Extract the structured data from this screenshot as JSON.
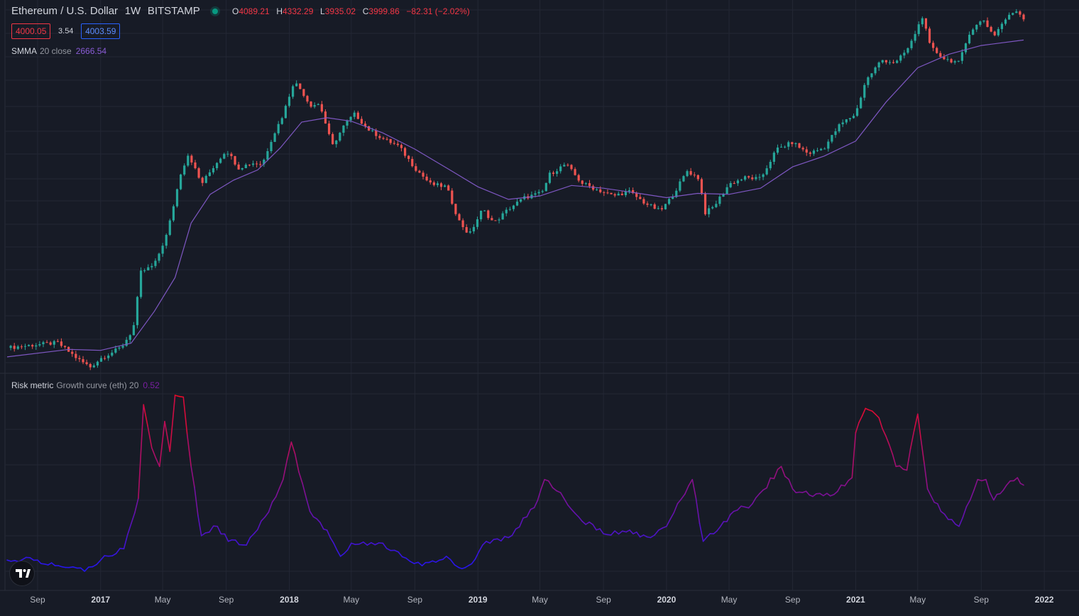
{
  "header": {
    "symbol": "Ethereum / U.S. Dollar",
    "interval": "1W",
    "exchange": "BITSTAMP",
    "ohlc": [
      {
        "key": "O",
        "value": "4089.21"
      },
      {
        "key": "H",
        "value": "4332.29"
      },
      {
        "key": "L",
        "value": "3935.02"
      },
      {
        "key": "C",
        "value": "3999.86"
      }
    ],
    "change": "−82.31 (−2.02%)"
  },
  "trade": {
    "sell_price": "4000.05",
    "spread": "3.54",
    "buy_price": "4003.59"
  },
  "indicators": {
    "smma": {
      "name": "SMMA",
      "params": "20 close",
      "value": "2666.54"
    },
    "risk": {
      "name": "Risk metric",
      "params": "Growth curve (eth) 20",
      "value": "0.52"
    }
  },
  "colors": {
    "background": "#171b26",
    "grid": "#232734",
    "up_candle": "#26a69a",
    "down_candle": "#ef5350",
    "smma_line": "#7e57c2",
    "risk_low": "#2216f0",
    "risk_high": "#ee0b22"
  },
  "chart_data": [
    {
      "type": "candlestick",
      "title": "Ethereum / U.S. Dollar · 1W · BITSTAMP",
      "y_scale": "log",
      "x_tick_labels": [
        "Sep",
        "2017",
        "May",
        "Sep",
        "2018",
        "May",
        "Sep",
        "2019",
        "May",
        "Sep",
        "2020",
        "May",
        "Sep",
        "2021",
        "May",
        "Sep",
        "2022"
      ],
      "x_tick_dates": [
        "2016-09-01",
        "2017-01-01",
        "2017-05-01",
        "2017-09-01",
        "2018-01-01",
        "2018-05-01",
        "2018-09-01",
        "2019-01-01",
        "2019-05-01",
        "2019-09-01",
        "2020-01-01",
        "2020-05-01",
        "2020-09-01",
        "2021-01-01",
        "2021-05-01",
        "2021-09-01",
        "2022-01-01"
      ],
      "start_date": "2016-07-04",
      "close_path": [
        [
          "2016-07-04",
          11.5
        ],
        [
          "2016-09-01",
          12.2
        ],
        [
          "2016-10-10",
          12.6
        ],
        [
          "2016-11-20",
          9.3
        ],
        [
          "2016-12-12",
          8.2
        ],
        [
          "2017-01-02",
          9.6
        ],
        [
          "2017-02-10",
          11.6
        ],
        [
          "2017-03-05",
          16
        ],
        [
          "2017-03-20",
          44
        ],
        [
          "2017-04-15",
          50
        ],
        [
          "2017-05-10",
          88
        ],
        [
          "2017-06-05",
          255
        ],
        [
          "2017-06-20",
          360
        ],
        [
          "2017-07-15",
          210
        ],
        [
          "2017-08-10",
          295
        ],
        [
          "2017-09-01",
          385
        ],
        [
          "2017-09-25",
          280
        ],
        [
          "2017-10-20",
          305
        ],
        [
          "2017-11-10",
          300
        ],
        [
          "2017-11-28",
          470
        ],
        [
          "2017-12-20",
          720
        ],
        [
          "2018-01-10",
          1300
        ],
        [
          "2018-01-25",
          1100
        ],
        [
          "2018-02-10",
          850
        ],
        [
          "2018-03-01",
          870
        ],
        [
          "2018-03-25",
          410
        ],
        [
          "2018-04-20",
          620
        ],
        [
          "2018-05-08",
          730
        ],
        [
          "2018-06-01",
          560
        ],
        [
          "2018-07-01",
          470
        ],
        [
          "2018-08-01",
          410
        ],
        [
          "2018-09-01",
          280
        ],
        [
          "2018-10-01",
          210
        ],
        [
          "2018-11-01",
          200
        ],
        [
          "2018-11-25",
          110
        ],
        [
          "2018-12-15",
          85
        ],
        [
          "2019-01-10",
          135
        ],
        [
          "2019-02-01",
          105
        ],
        [
          "2019-03-01",
          135
        ],
        [
          "2019-04-01",
          165
        ],
        [
          "2019-05-05",
          180
        ],
        [
          "2019-05-20",
          250
        ],
        [
          "2019-06-20",
          300
        ],
        [
          "2019-07-20",
          215
        ],
        [
          "2019-08-20",
          190
        ],
        [
          "2019-09-20",
          170
        ],
        [
          "2019-10-20",
          185
        ],
        [
          "2019-11-20",
          150
        ],
        [
          "2019-12-20",
          130
        ],
        [
          "2020-01-10",
          165
        ],
        [
          "2020-02-10",
          265
        ],
        [
          "2020-03-05",
          230
        ],
        [
          "2020-03-14",
          125
        ],
        [
          "2020-04-01",
          140
        ],
        [
          "2020-05-01",
          210
        ],
        [
          "2020-06-01",
          235
        ],
        [
          "2020-07-01",
          230
        ],
        [
          "2020-08-01",
          390
        ],
        [
          "2020-09-01",
          440
        ],
        [
          "2020-10-01",
          360
        ],
        [
          "2020-11-01",
          400
        ],
        [
          "2020-12-01",
          600
        ],
        [
          "2021-01-01",
          730
        ],
        [
          "2021-01-20",
          1300
        ],
        [
          "2021-02-20",
          1900
        ],
        [
          "2021-03-20",
          1800
        ],
        [
          "2021-04-15",
          2400
        ],
        [
          "2021-05-10",
          4100
        ],
        [
          "2021-05-25",
          2400
        ],
        [
          "2021-06-20",
          1950
        ],
        [
          "2021-07-20",
          1800
        ],
        [
          "2021-08-10",
          3150
        ],
        [
          "2021-09-05",
          3900
        ],
        [
          "2021-09-25",
          2900
        ],
        [
          "2021-10-15",
          3800
        ],
        [
          "2021-11-07",
          4600
        ],
        [
          "2021-11-22",
          4000
        ]
      ],
      "smma_path": [
        [
          "2016-07-04",
          9.8
        ],
        [
          "2016-11-01",
          11.2
        ],
        [
          "2017-01-01",
          11
        ],
        [
          "2017-03-01",
          12.5
        ],
        [
          "2017-04-15",
          22
        ],
        [
          "2017-05-25",
          40
        ],
        [
          "2017-06-25",
          105
        ],
        [
          "2017-08-01",
          175
        ],
        [
          "2017-09-15",
          225
        ],
        [
          "2017-11-01",
          270
        ],
        [
          "2017-12-15",
          400
        ],
        [
          "2018-01-25",
          630
        ],
        [
          "2018-03-15",
          680
        ],
        [
          "2018-05-01",
          640
        ],
        [
          "2018-07-01",
          520
        ],
        [
          "2018-09-01",
          390
        ],
        [
          "2018-11-01",
          280
        ],
        [
          "2019-01-01",
          200
        ],
        [
          "2019-03-01",
          160
        ],
        [
          "2019-05-01",
          170
        ],
        [
          "2019-07-01",
          205
        ],
        [
          "2019-09-01",
          195
        ],
        [
          "2019-11-01",
          180
        ],
        [
          "2020-01-01",
          165
        ],
        [
          "2020-03-01",
          178
        ],
        [
          "2020-05-01",
          175
        ],
        [
          "2020-07-01",
          195
        ],
        [
          "2020-09-01",
          285
        ],
        [
          "2020-11-01",
          345
        ],
        [
          "2021-01-01",
          450
        ],
        [
          "2021-03-01",
          900
        ],
        [
          "2021-05-01",
          1650
        ],
        [
          "2021-07-01",
          2100
        ],
        [
          "2021-09-01",
          2450
        ],
        [
          "2021-11-22",
          2700
        ]
      ]
    },
    {
      "type": "line",
      "title": "Risk metric Growth curve (eth) 20",
      "series": [
        {
          "values": [
            [
              "2016-07-04",
              0.12
            ],
            [
              "2016-09-01",
              0.12
            ],
            [
              "2016-11-01",
              0.08
            ],
            [
              "2016-12-01",
              0.06
            ],
            [
              "2017-01-01",
              0.12
            ],
            [
              "2017-02-15",
              0.18
            ],
            [
              "2017-03-15",
              0.45
            ],
            [
              "2017-03-25",
              0.95
            ],
            [
              "2017-04-10",
              0.72
            ],
            [
              "2017-04-25",
              0.62
            ],
            [
              "2017-05-05",
              0.86
            ],
            [
              "2017-05-15",
              0.7
            ],
            [
              "2017-05-25",
              1.0
            ],
            [
              "2017-06-10",
              0.99
            ],
            [
              "2017-06-25",
              0.62
            ],
            [
              "2017-07-15",
              0.25
            ],
            [
              "2017-08-15",
              0.3
            ],
            [
              "2017-09-05",
              0.22
            ],
            [
              "2017-10-10",
              0.2
            ],
            [
              "2017-11-15",
              0.35
            ],
            [
              "2017-12-20",
              0.55
            ],
            [
              "2018-01-05",
              0.75
            ],
            [
              "2018-02-10",
              0.38
            ],
            [
              "2018-03-15",
              0.28
            ],
            [
              "2018-04-10",
              0.14
            ],
            [
              "2018-05-01",
              0.21
            ],
            [
              "2018-06-01",
              0.2
            ],
            [
              "2018-07-01",
              0.21
            ],
            [
              "2018-08-15",
              0.13
            ],
            [
              "2018-09-15",
              0.09
            ],
            [
              "2018-11-01",
              0.14
            ],
            [
              "2018-11-25",
              0.08
            ],
            [
              "2018-12-20",
              0.1
            ],
            [
              "2019-01-10",
              0.2
            ],
            [
              "2019-03-01",
              0.24
            ],
            [
              "2019-04-20",
              0.4
            ],
            [
              "2019-05-10",
              0.55
            ],
            [
              "2019-06-10",
              0.48
            ],
            [
              "2019-07-15",
              0.35
            ],
            [
              "2019-09-01",
              0.26
            ],
            [
              "2019-10-15",
              0.27
            ],
            [
              "2019-12-01",
              0.24
            ],
            [
              "2020-01-01",
              0.3
            ],
            [
              "2020-02-20",
              0.55
            ],
            [
              "2020-03-12",
              0.22
            ],
            [
              "2020-04-01",
              0.26
            ],
            [
              "2020-05-10",
              0.38
            ],
            [
              "2020-06-15",
              0.42
            ],
            [
              "2020-08-10",
              0.62
            ],
            [
              "2020-09-01",
              0.5
            ],
            [
              "2020-10-10",
              0.46
            ],
            [
              "2020-11-20",
              0.47
            ],
            [
              "2020-12-25",
              0.56
            ],
            [
              "2021-01-01",
              0.8
            ],
            [
              "2021-01-20",
              0.93
            ],
            [
              "2021-02-15",
              0.88
            ],
            [
              "2021-03-20",
              0.62
            ],
            [
              "2021-04-10",
              0.6
            ],
            [
              "2021-05-01",
              0.9
            ],
            [
              "2021-05-20",
              0.5
            ],
            [
              "2021-06-15",
              0.38
            ],
            [
              "2021-07-20",
              0.3
            ],
            [
              "2021-08-25",
              0.55
            ],
            [
              "2021-09-10",
              0.55
            ],
            [
              "2021-09-25",
              0.44
            ],
            [
              "2021-10-20",
              0.52
            ],
            [
              "2021-11-10",
              0.56
            ],
            [
              "2021-11-22",
              0.52
            ]
          ]
        }
      ]
    }
  ]
}
